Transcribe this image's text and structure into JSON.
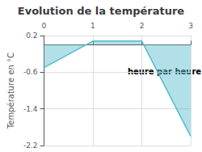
{
  "chart_data": {
    "type": "area",
    "title": "Evolution de la température",
    "ylabel": "Température en °C",
    "annotation": "heure par heure",
    "x": [
      0,
      1,
      2,
      3
    ],
    "values": [
      -0.5,
      0.08,
      0.08,
      -2.0
    ],
    "color": "#55bbcc",
    "xlim": [
      0,
      3
    ],
    "ylim": [
      -2.2,
      0.2
    ],
    "xticks": [
      0,
      1,
      2,
      3
    ],
    "yticks": [
      0.2,
      -0.6,
      -1.4,
      -2.2
    ],
    "grid": true
  }
}
